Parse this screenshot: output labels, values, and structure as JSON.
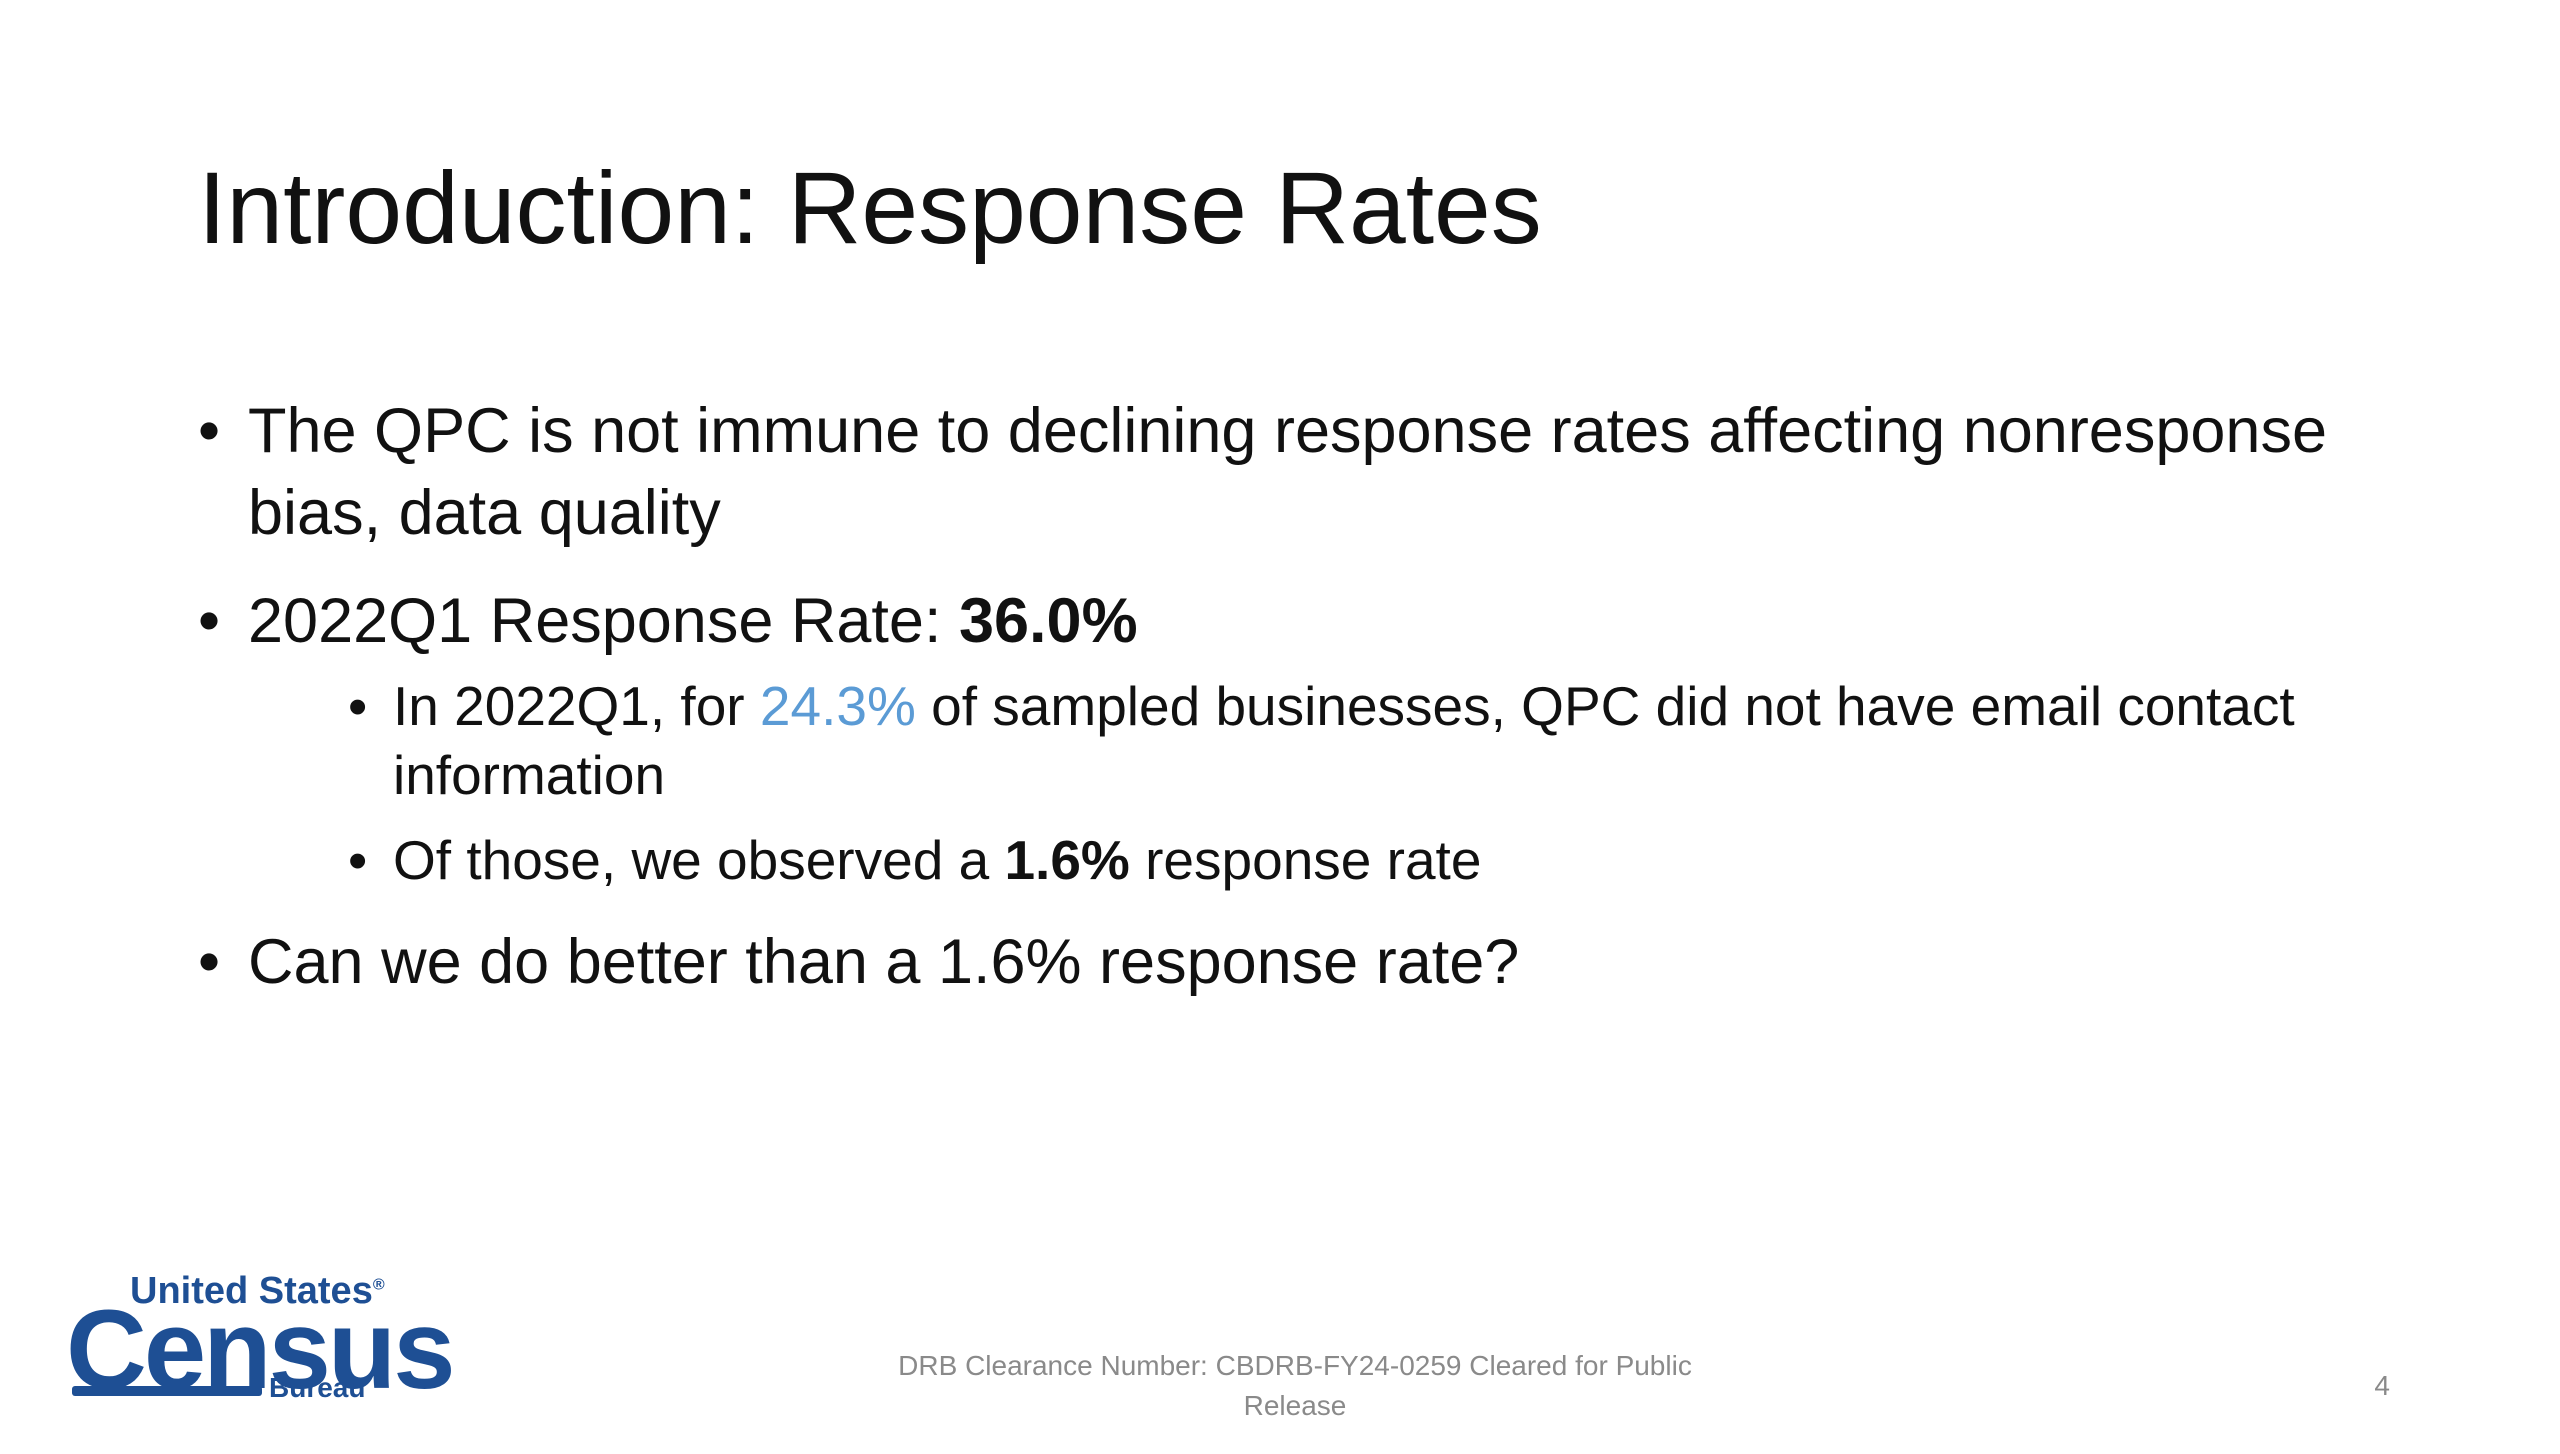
{
  "slide": {
    "title": "Introduction: Response Rates",
    "bullets": [
      {
        "text": "The QPC is not immune to declining response rates affecting nonresponse bias, data quality"
      },
      {
        "prefix": "2022Q1 Response Rate: ",
        "value": "36.0%",
        "sub_bullets": [
          {
            "prefix": "In 2022Q1, for ",
            "highlight": "24.3%",
            "suffix": " of sampled businesses, QPC did not have email contact information"
          },
          {
            "prefix": "Of those, we observed a ",
            "value": "1.6%",
            "suffix": " response rate"
          }
        ]
      },
      {
        "text": "Can we do better than a 1.6% response rate?"
      }
    ],
    "footer": "DRB Clearance Number: CBDRB-FY24-0259 Cleared for Public Release",
    "page_number": "4"
  },
  "logo": {
    "line1": "United States",
    "line2": "Census",
    "line3": "Bureau",
    "registered": "®"
  },
  "colors": {
    "accent": "#5b9bd5",
    "logo_blue": "#1e4f94",
    "footer_gray": "#8a8a8a"
  }
}
